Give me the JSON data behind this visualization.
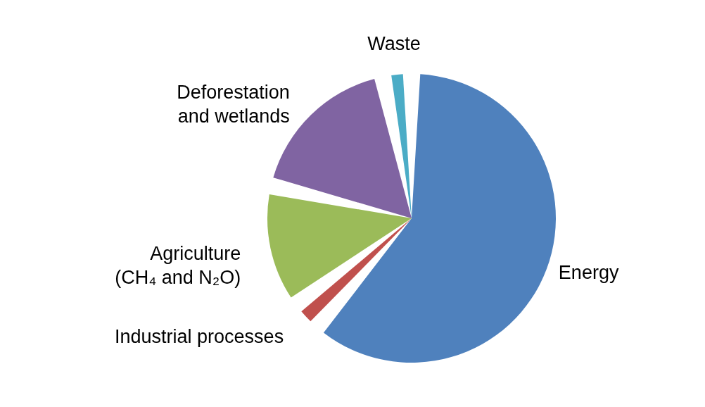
{
  "chart_data": {
    "type": "pie",
    "categories": [
      "Energy",
      "Industrial processes",
      "Agriculture\n(CH₄ and N₂O)",
      "Deforestation\nand wetlands",
      "Waste"
    ],
    "values": [
      61.4,
      3.4,
      13.8,
      18.2,
      3.2
    ],
    "colors": [
      "#4f81bd",
      "#c0504d",
      "#9bbb59",
      "#8064a2",
      "#4bacc6"
    ]
  }
}
